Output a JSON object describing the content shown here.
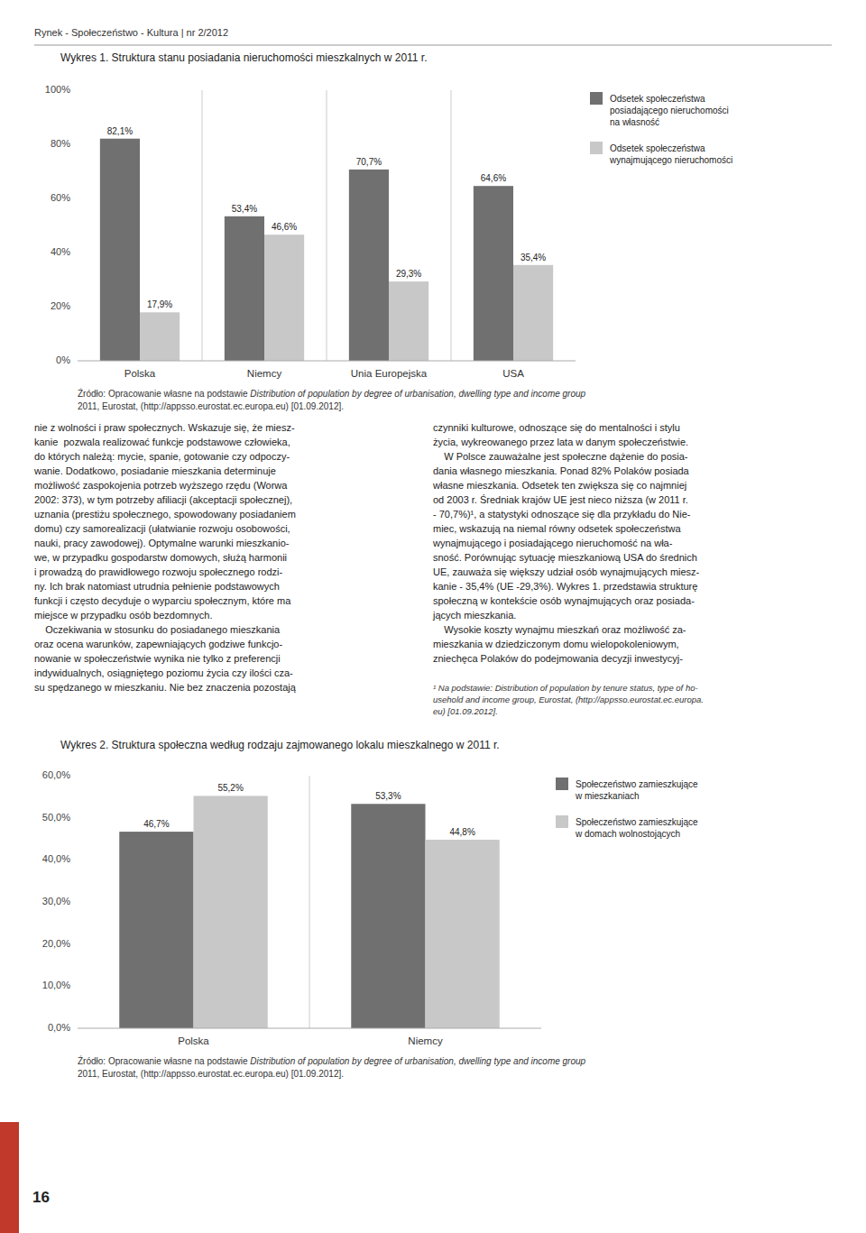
{
  "page_title": "Rynek - Społeczeństwo - Kultura | nr 2/2012",
  "page_number": "16",
  "text_left": "nie z wolności i praw społecznych. Wskazuje się, że miesz-\nkanie  pozwala realizować funkcje podstawowe człowieka,\ndo których należą: mycie, spanie, gotowanie czy odpoczy-\nwanie. Dodatkowo, posiadanie mieszkania determinuje\nmożliwość zaspokojenia potrzeb wyższego rzędu (Worwa\n2002: 373), w tym potrzeby afiliacji (akceptacji społecznej),\nuznania (prestiżu społecznego, spowodowany posiadaniem\ndomu) czy samorealizacji (ułatwianie rozwoju osobowości,\nnauki, pracy zawodowej). Optymalne warunki mieszkanio-\nwe, w przypadku gospodarstw domowych, służą harmonii\ni prowadzą do prawidłowego rozwoju społecznego rodzi-\nny. Ich brak natomiast utrudnia pełnienie podstawowych\nfunkcji i często decyduje o wyparciu społecznym, które ma\nmiejsce w przypadku osób bezdomnych.\n    Oczekiwania w stosunku do posiadanego mieszkania\noraz ocena warunków, zapewniających godziwe funkcjo-\nnowanie w społeczeństwie wynika nie tylko z preferencji\nindywidualnych, osiągniętego poziomu życia czy ilości cza-\nsu spędzanego w mieszkaniu. Nie bez znaczenia pozostają",
  "text_right": "czynniki kulturowe, odnoszące się do mentalności i stylu\nżycia, wykreowanego przez lata w danym społeczeństwie.\n    W Polsce zauważalne jest społeczne dążenie do posia-\ndania własnego mieszkania. Ponad 82% Polaków posiada\nwłasne mieszkania. Odsetek ten zwiększa się co najmniej\nod 2003 r. Średniak krajów UE jest nieco niższa (w 2011 r.\n- 70,7%)¹, a statystyki odnoszące się dla przykładu do Nie-\nmiec, wskazują na niemal równy odsetek społeczeństwa\nwynajmującego i posiadającego nieruchomość na wła-\nsność. Porównując sytuację mieszkaniową USA do średnich\nUE, zauważa się większy udział osób wynajmujących miesz-\nkanie - 35,4% (UE -29,3%). Wykres 1. przedstawia strukturę\nspołeczną w kontekście osób wynajmujących oraz posiada-\njących mieszkania.\n    Wysokie koszty wynajmu mieszkań oraz możliwość za-\nmieszkania w dziedziczonym domu wielopokoleniowym,\nzniechęca Polaków do podejmowania decyzji inwestycyj-",
  "footnote": "¹ Na podstawie: Distribution of population by tenure status, type of ho-\nusehold and income group, Eurostat, (http://appsso.eurostat.ec.europa.\neu) [01.09.2012].",
  "chart_data": [
    {
      "type": "bar",
      "title": "Wykres 1. Struktura stanu posiadania nieruchomości mieszkalnych w 2011 r.",
      "categories": [
        "Polska",
        "Niemcy",
        "Unia Europejska",
        "USA"
      ],
      "series": [
        {
          "name": "Odsetek społeczeństwa\nposiadającego nieruchomości\nna własność",
          "color": "#707070",
          "values": [
            82.1,
            53.4,
            70.7,
            64.6
          ],
          "value_labels": [
            "82,1%",
            "53,4%",
            "70,7%",
            "64,6%"
          ]
        },
        {
          "name": "Odsetek społeczeństwa\nwynajmującego nieruchomości",
          "color": "#c8c8c8",
          "values": [
            17.9,
            46.6,
            29.3,
            35.4
          ],
          "value_labels": [
            "17,9%",
            "46,6%",
            "29,3%",
            "35,4%"
          ]
        }
      ],
      "ylim": [
        0,
        100
      ],
      "yticks": [
        {
          "value": 0,
          "label": "0%"
        },
        {
          "value": 20,
          "label": "20%"
        },
        {
          "value": 40,
          "label": "40%"
        },
        {
          "value": 60,
          "label": "60%"
        },
        {
          "value": 80,
          "label": "80%"
        },
        {
          "value": 100,
          "label": "100%"
        }
      ],
      "grid": false,
      "data_labels": true,
      "legend": "right",
      "source": [
        "Źródło: Opracowanie własne na podstawie ",
        "Distribution of population by degree of urbanisation, dwelling type and income group",
        "2011, Eurostat, (http://appsso.eurostat.ec.europa.eu) [01.09.2012]."
      ]
    },
    {
      "type": "bar",
      "title": "Wykres 2. Struktura społeczna według rodzaju zajmowanego lokalu mieszkalnego w 2011 r.",
      "categories": [
        "Polska",
        "Niemcy"
      ],
      "series": [
        {
          "name": "Społeczeństwo zamieszkujące\nw mieszkaniach",
          "color": "#707070",
          "values": [
            46.7,
            53.3
          ],
          "value_labels": [
            "46,7%",
            "53,3%"
          ]
        },
        {
          "name": "Społeczeństwo zamieszkujące\nw domach wolnostojących",
          "color": "#c8c8c8",
          "values": [
            55.2,
            44.8
          ],
          "value_labels": [
            "55,2%",
            "44,8%"
          ]
        }
      ],
      "ylim": [
        0,
        60
      ],
      "yticks": [
        {
          "value": 0,
          "label": "0,0%"
        },
        {
          "value": 10,
          "label": "10,0%"
        },
        {
          "value": 20,
          "label": "20,0%"
        },
        {
          "value": 30,
          "label": "30,0%"
        },
        {
          "value": 40,
          "label": "40,0%"
        },
        {
          "value": 50,
          "label": "50,0%"
        },
        {
          "value": 60,
          "label": "60,0%"
        }
      ],
      "grid": false,
      "data_labels": true,
      "legend": "right",
      "source": [
        "Źródło: Opracowanie własne na podstawie ",
        "Distribution of population by degree of urbanisation, dwelling type and income group",
        "2011, Eurostat, (http://appsso.eurostat.ec.europa.eu) [01.09.2012]."
      ]
    }
  ]
}
